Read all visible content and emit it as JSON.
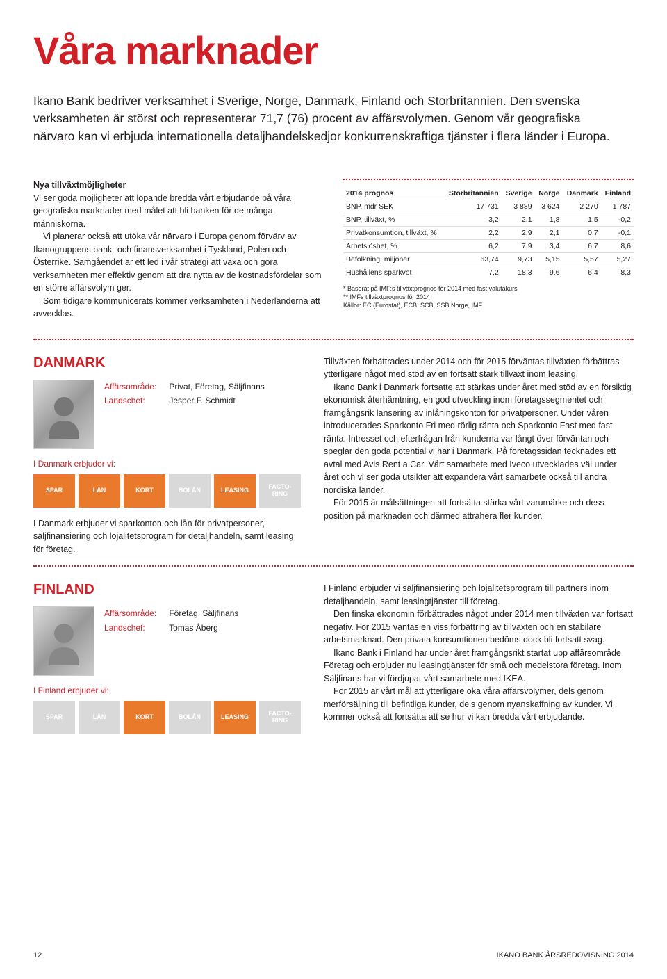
{
  "title": "Våra marknader",
  "intro": "Ikano Bank bedriver verksamhet i Sverige, Norge, Danmark, Finland och Storbritannien. Den svenska verksamheten är störst och representerar 71,7 (76) procent av affärsvolymen. Genom vår geografiska närvaro kan vi erbjuda internationella detaljhandelskedjor konkurrenskraftiga tjänster i flera länder i Europa.",
  "growth_head": "Nya tillväxtmöjligheter",
  "growth_p1": "Vi ser goda möjligheter att löpande bredda vårt erbjudande på våra geografiska marknader med målet att bli banken för de många människorna.",
  "growth_p2": "Vi planerar också att utöka vår närvaro i Europa genom förvärv av Ikanogruppens bank- och finansverksamhet i Tyskland, Polen och Österrike. Samgåendet är ett led i vår strategi att växa och göra verksamheten mer effektiv genom att dra nytta av de kostnadsfördelar som en större affärsvolym ger.",
  "growth_p3": "Som tidigare kommunicerats kommer verksamheten i Nederländerna att avvecklas.",
  "table": {
    "header": [
      "2014 prognos",
      "Storbritannien",
      "Sverige",
      "Norge",
      "Danmark",
      "Finland"
    ],
    "rows": [
      [
        "BNP, mdr SEK",
        "17 731",
        "3 889",
        "3 624",
        "2 270",
        "1 787"
      ],
      [
        "BNP, tillväxt, %",
        "3,2",
        "2,1",
        "1,8",
        "1,5",
        "-0,2"
      ],
      [
        "Privatkonsumtion, tillväxt, %",
        "2,2",
        "2,9",
        "2,1",
        "0,7",
        "-0,1"
      ],
      [
        "Arbetslöshet, %",
        "6,2",
        "7,9",
        "3,4",
        "6,7",
        "8,6"
      ],
      [
        "Befolkning, miljoner",
        "63,74",
        "9,73",
        "5,15",
        "5,57",
        "5,27"
      ],
      [
        "Hushållens sparkvot",
        "7,2",
        "18,3",
        "9,6",
        "6,4",
        "8,3"
      ]
    ],
    "footnote1": "* Baserat på IMF:s tillväxtprognos för 2014 med fast valutakurs",
    "footnote2": "** IMFs tillväxtprognos för 2014",
    "footnote3": "Källor: EC (Eurostat), ECB, SCB, SSB Norge, IMF"
  },
  "denmark": {
    "name": "DANMARK",
    "area_label": "Affärsområde:",
    "area_value": "Privat, Företag, Säljfinans",
    "chief_label": "Landschef:",
    "chief_value": "Jesper F. Schmidt",
    "offer_label": "I Danmark erbjuder vi:",
    "tiles": [
      {
        "label": "SPAR",
        "on": true
      },
      {
        "label": "LÅN",
        "on": true
      },
      {
        "label": "KORT",
        "on": true
      },
      {
        "label": "BOLÅN",
        "on": false
      },
      {
        "label": "LEASING",
        "on": true
      },
      {
        "label": "FACTO-\nRING",
        "on": false
      }
    ],
    "desc": "I Danmark erbjuder vi sparkonton och lån för privatpersoner, säljfinansiering och lojalitetsprogram för detaljhandeln, samt leasing för företag.",
    "body1": "Tillväxten förbättrades under 2014 och för 2015 förväntas tillväxten förbättras ytterligare något med stöd av en fortsatt stark tillväxt inom leasing.",
    "body2": "Ikano Bank i Danmark fortsatte att stärkas under året med stöd av en försiktig ekonomisk återhämtning, en god utveckling inom företagssegmentet och framgångsrik lansering av inlåningskonton för privatpersoner. Under våren introducerades Sparkonto Fri med rörlig ränta och Sparkonto Fast med fast ränta. Intresset och efterfrågan från kunderna var långt över förväntan och speglar den goda potential vi har i Danmark. På företagssidan tecknades ett avtal med Avis Rent a Car. Vårt samarbete med Iveco utvecklades väl under året och vi ser goda utsikter att expandera vårt samarbete också till andra nordiska länder.",
    "body3": "För 2015 är målsättningen att fortsätta stärka vårt varumärke och dess position på marknaden och därmed attrahera fler kunder."
  },
  "finland": {
    "name": "FINLAND",
    "area_label": "Affärsområde:",
    "area_value": "Företag, Säljfinans",
    "chief_label": "Landschef:",
    "chief_value": "Tomas Åberg",
    "offer_label": "I Finland erbjuder vi:",
    "tiles": [
      {
        "label": "SPAR",
        "on": false
      },
      {
        "label": "LÅN",
        "on": false
      },
      {
        "label": "KORT",
        "on": true
      },
      {
        "label": "BOLÅN",
        "on": false
      },
      {
        "label": "LEASING",
        "on": true
      },
      {
        "label": "FACTO-\nRING",
        "on": false
      }
    ],
    "body1": "I Finland erbjuder vi säljfinansiering och lojalitetsprogram till partners inom detaljhandeln, samt leasingtjänster till företag.",
    "body2": "Den finska ekonomin förbättrades något under 2014 men tillväxten var fortsatt negativ. För 2015 väntas en viss förbättring av tillväxten och en stabilare arbetsmarknad. Den privata konsumtionen bedöms dock bli fortsatt svag.",
    "body3": "Ikano Bank i Finland har under året framgångsrikt startat upp affärsområde Företag och erbjuder nu leasingtjänster för små och medelstora företag. Inom Säljfinans har vi fördjupat vårt samarbete med IKEA.",
    "body4": "För 2015 är vårt mål att ytterligare öka våra affärsvolymer, dels genom merförsäljning till befintliga kunder, dels genom nyanskaffning av kunder. Vi kommer också att fortsätta att se hur vi kan bredda vårt erbjudande."
  },
  "page_num": "12",
  "footer_right": "IKANO BANK ÅRSREDOVISNING 2014"
}
